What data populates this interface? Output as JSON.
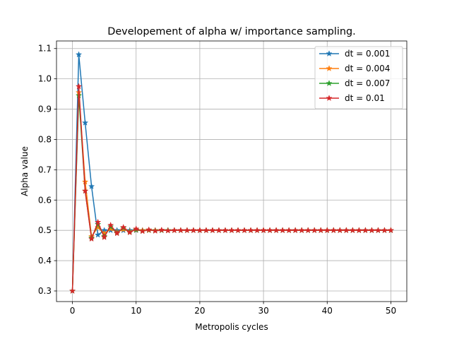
{
  "chart_data": {
    "type": "line",
    "title": "Developement of alpha w/ importance sampling.",
    "xlabel": "Metropolis cycles",
    "ylabel": "Alpha value",
    "xlim": [
      -2.5,
      52.5
    ],
    "ylim": [
      0.265,
      1.125
    ],
    "xticks": [
      0,
      10,
      20,
      30,
      40,
      50
    ],
    "yticks": [
      0.3,
      0.4,
      0.5,
      0.6,
      0.7,
      0.8,
      0.9,
      1.0,
      1.1
    ],
    "grid": true,
    "legend_position": "top-right",
    "marker": "star",
    "x": [
      0,
      1,
      2,
      3,
      4,
      5,
      6,
      7,
      8,
      9,
      10,
      11,
      12,
      13,
      14,
      15,
      16,
      17,
      18,
      19,
      20,
      21,
      22,
      23,
      24,
      25,
      26,
      27,
      28,
      29,
      30,
      31,
      32,
      33,
      34,
      35,
      36,
      37,
      38,
      39,
      40,
      41,
      42,
      43,
      44,
      45,
      46,
      47,
      48,
      49,
      50
    ],
    "series": [
      {
        "name": "dt = 0.001",
        "color": "#1f77b4",
        "values": [
          0.3,
          1.08,
          0.855,
          0.645,
          0.485,
          0.5,
          0.5,
          0.5,
          0.5,
          0.5,
          0.5,
          0.5,
          0.5,
          0.5,
          0.5,
          0.5,
          0.5,
          0.5,
          0.5,
          0.5,
          0.5,
          0.5,
          0.5,
          0.5,
          0.5,
          0.5,
          0.5,
          0.5,
          0.5,
          0.5,
          0.5,
          0.5,
          0.5,
          0.5,
          0.5,
          0.5,
          0.5,
          0.5,
          0.5,
          0.5,
          0.5,
          0.5,
          0.5,
          0.5,
          0.5,
          0.5,
          0.5,
          0.5,
          0.5,
          0.5,
          0.5
        ]
      },
      {
        "name": "dt = 0.004",
        "color": "#ff7f0e",
        "values": [
          0.3,
          0.955,
          0.66,
          0.48,
          0.51,
          0.49,
          0.505,
          0.495,
          0.503,
          0.497,
          0.501,
          0.5,
          0.5,
          0.5,
          0.5,
          0.5,
          0.5,
          0.5,
          0.5,
          0.5,
          0.5,
          0.5,
          0.5,
          0.5,
          0.5,
          0.5,
          0.5,
          0.5,
          0.5,
          0.5,
          0.5,
          0.5,
          0.5,
          0.5,
          0.5,
          0.5,
          0.5,
          0.5,
          0.5,
          0.5,
          0.5,
          0.5,
          0.5,
          0.5,
          0.5,
          0.5,
          0.5,
          0.5,
          0.5,
          0.5,
          0.5
        ]
      },
      {
        "name": "dt = 0.007",
        "color": "#2ca02c",
        "values": [
          0.3,
          0.945,
          0.63,
          0.475,
          0.52,
          0.48,
          0.512,
          0.492,
          0.508,
          0.495,
          0.502,
          0.498,
          0.501,
          0.499,
          0.5,
          0.5,
          0.5,
          0.5,
          0.5,
          0.5,
          0.5,
          0.5,
          0.5,
          0.5,
          0.5,
          0.5,
          0.5,
          0.5,
          0.5,
          0.5,
          0.5,
          0.5,
          0.5,
          0.5,
          0.5,
          0.5,
          0.5,
          0.5,
          0.5,
          0.5,
          0.5,
          0.5,
          0.5,
          0.5,
          0.5,
          0.5,
          0.5,
          0.5,
          0.5,
          0.5,
          0.5
        ]
      },
      {
        "name": "dt = 0.01",
        "color": "#d62728",
        "values": [
          0.3,
          0.975,
          0.63,
          0.472,
          0.527,
          0.477,
          0.517,
          0.49,
          0.51,
          0.493,
          0.505,
          0.497,
          0.502,
          0.498,
          0.501,
          0.499,
          0.5,
          0.5,
          0.5,
          0.5,
          0.5,
          0.5,
          0.5,
          0.5,
          0.5,
          0.5,
          0.5,
          0.5,
          0.5,
          0.5,
          0.5,
          0.5,
          0.5,
          0.5,
          0.5,
          0.5,
          0.5,
          0.5,
          0.5,
          0.5,
          0.5,
          0.5,
          0.5,
          0.5,
          0.5,
          0.5,
          0.5,
          0.5,
          0.5,
          0.5,
          0.5
        ]
      }
    ]
  }
}
